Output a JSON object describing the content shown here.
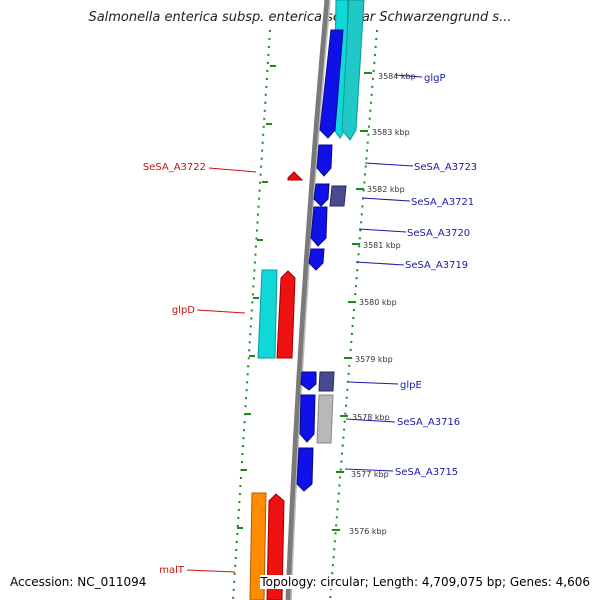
{
  "title": "Salmonella enterica subsp. enterica serovar Schwarzengrund s...",
  "footer": {
    "accession": "Accession: NC_011094",
    "summary": "Topology: circular; Length: 4,709,075 bp; Genes: 4,606"
  },
  "colors": {
    "backbone": "#888888",
    "tick": "#1a8a1a",
    "label_blue": "#1a1aa8",
    "label_red": "#cc1111",
    "gene_blue": "#1010e8",
    "gene_cyan": "#10d8d8",
    "gene_red": "#ee1111",
    "gene_purple": "#4a4a90",
    "gene_gray": "#b8b8b8",
    "gene_orange": "#ff8c00"
  },
  "scale_labels": [
    "3584 kbp",
    "3583 kbp",
    "3582 kbp",
    "3581 kbp",
    "3580 kbp",
    "3579 kbp",
    "3578 kbp",
    "3577 kbp",
    "3576 kbp"
  ],
  "gene_labels": [
    {
      "text": "glgP",
      "strand": "right"
    },
    {
      "text": "SeSA_A3723",
      "strand": "right"
    },
    {
      "text": "SeSA_A3721",
      "strand": "right"
    },
    {
      "text": "SeSA_A3720",
      "strand": "right"
    },
    {
      "text": "SeSA_A3719",
      "strand": "right"
    },
    {
      "text": "glpE",
      "strand": "right"
    },
    {
      "text": "SeSA_A3716",
      "strand": "right"
    },
    {
      "text": "SeSA_A3715",
      "strand": "right"
    },
    {
      "text": "SeSA_A3722",
      "strand": "left"
    },
    {
      "text": "glpD",
      "strand": "left"
    },
    {
      "text": "malT",
      "strand": "left"
    }
  ]
}
